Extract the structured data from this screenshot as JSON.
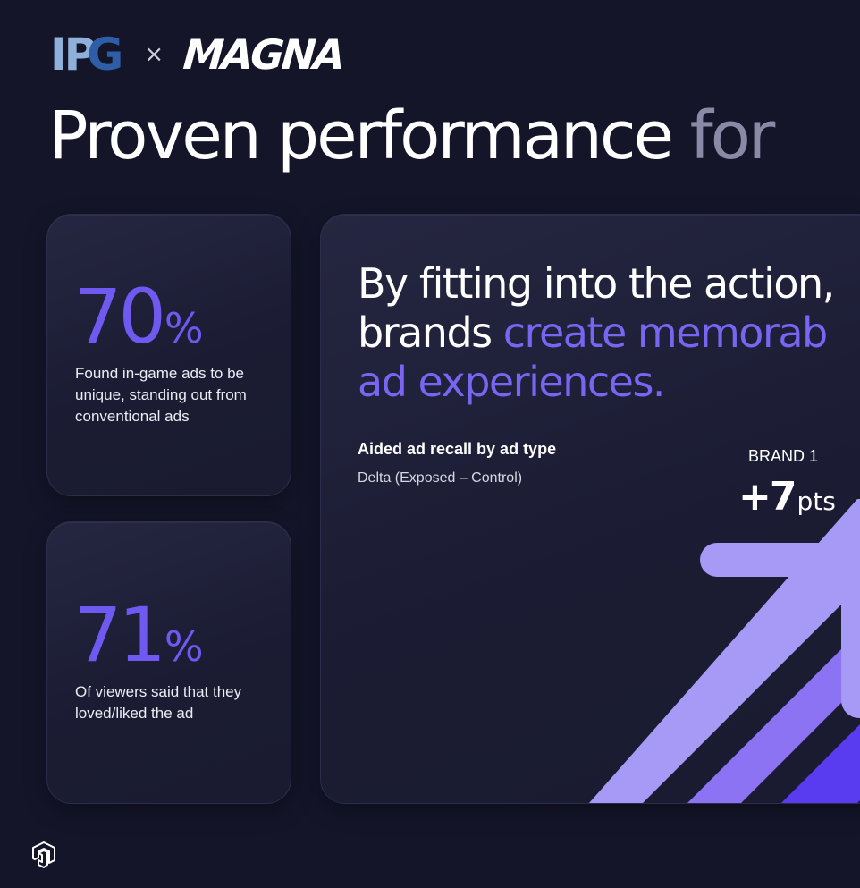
{
  "logos": {
    "ipg": "IPG",
    "separator": "×",
    "magna": "MAGNA"
  },
  "headline": {
    "main": "Proven performance",
    "dim": "for"
  },
  "stats": [
    {
      "number": "70",
      "unit": "%",
      "description": "Found in-game ads to be unique, standing out from conventional ads"
    },
    {
      "number": "71",
      "unit": "%",
      "description": "Of viewers said that they loved/liked the ad"
    }
  ],
  "feature": {
    "quote_line1": "By fitting into the action,",
    "quote_line2_plain": "brands ",
    "quote_line2_accent": "create memorab",
    "quote_line3_accent": "ad experiences.",
    "recall_title": "Aided ad recall by ad type",
    "recall_subtitle": "Delta (Exposed – Control)",
    "brand_label": "BRAND 1",
    "brand_value": "+7",
    "brand_unit": "pts"
  },
  "icons": {
    "arrow": "diagonal-arrow-graphic",
    "corner": "cube-logo-icon"
  },
  "colors": {
    "background": "#141529",
    "accent": "#6f59f0",
    "arrow_light": "#a79af7",
    "arrow_mid": "#8b73f3",
    "arrow_dark": "#5a3cf0"
  }
}
